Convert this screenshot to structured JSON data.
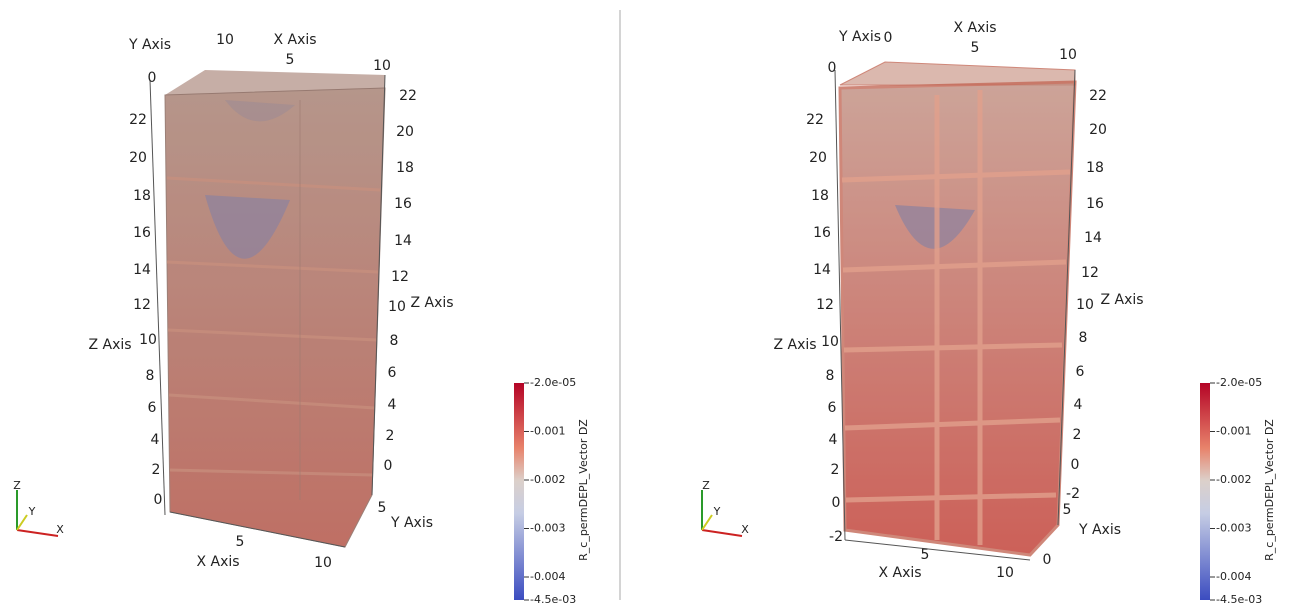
{
  "views": [
    {
      "labels": [
        "Y Axis",
        "10",
        "X Axis",
        "5",
        "10",
        "0",
        "22",
        "20",
        "18",
        "16",
        "14",
        "12",
        "Z Axis",
        "10",
        "8",
        "6",
        "4",
        "2",
        "0",
        "22",
        "20",
        "18",
        "16",
        "14",
        "12",
        "10",
        "Z Axis",
        "8",
        "6",
        "4",
        "2",
        "0",
        "5",
        "X Axis",
        "10",
        "5",
        "Y Axis"
      ],
      "orientation": [
        "Z",
        "Y",
        "X"
      ],
      "colorbar": {
        "title": "R_c_permDEPL_Vector DZ",
        "ticks": [
          "-2.0e-05",
          "-0.001",
          "-0.002",
          "-0.003",
          "-0.004",
          "-4.5e-03"
        ]
      }
    },
    {
      "labels": [
        "Y Axis",
        "0",
        "X Axis",
        "5",
        "10",
        "0",
        "22",
        "20",
        "18",
        "16",
        "14",
        "12",
        "Z Axis",
        "10",
        "8",
        "6",
        "4",
        "2",
        "0",
        "-2",
        "22",
        "20",
        "18",
        "16",
        "14",
        "12",
        "10",
        "Z Axis",
        "8",
        "6",
        "4",
        "2",
        "0",
        "-2",
        "5",
        "Y Axis",
        "0",
        "5",
        "X Axis",
        "10"
      ],
      "orientation": [
        "Z",
        "Y",
        "X"
      ],
      "colorbar": {
        "title": "R_c_permDEPL_Vector DZ",
        "ticks": [
          "-2.0e-05",
          "-0.001",
          "-0.002",
          "-0.003",
          "-0.004",
          "-4.5e-03"
        ]
      }
    }
  ]
}
